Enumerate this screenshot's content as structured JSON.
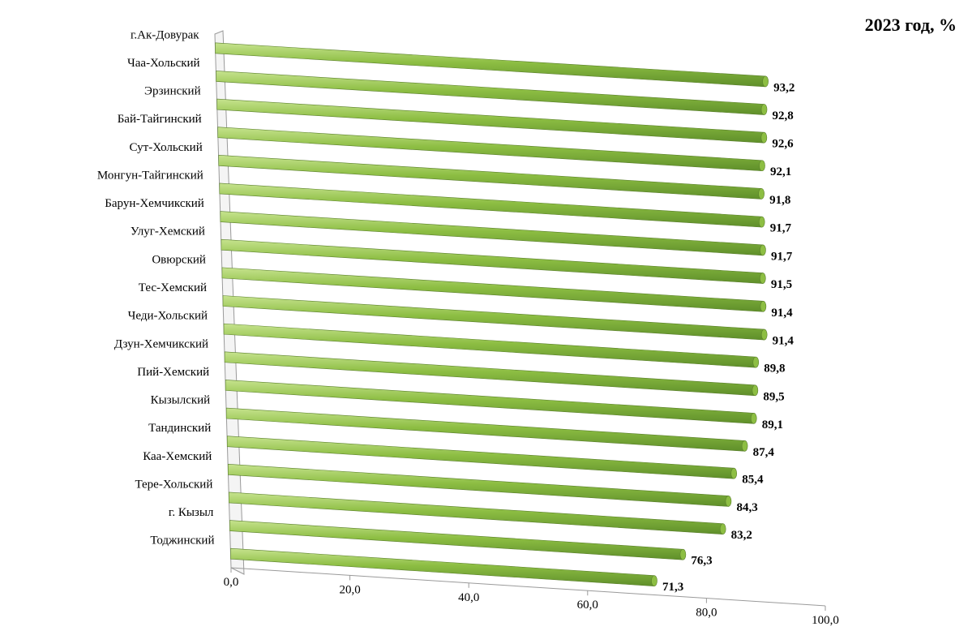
{
  "chart_data": {
    "type": "bar",
    "orientation": "horizontal",
    "title": "2023 год, %",
    "categories": [
      "г.Ак-Довурак",
      "Чаа-Хольский",
      "Эрзинский",
      "Бай-Тайгинский",
      "Сут-Хольский",
      "Монгун-Тайгинский",
      "Барун-Хемчикский",
      "Улуг-Хемский",
      "Овюрский",
      "Тес-Хемский",
      "Чеди-Хольский",
      "Дзун-Хемчикский",
      "Пий-Хемский",
      "Кызылский",
      "Тандинский",
      "Каа-Хемский",
      "Тере-Хольский",
      "г. Кызыл",
      "Тоджинский"
    ],
    "values": [
      93.2,
      92.8,
      92.6,
      92.1,
      91.8,
      91.7,
      91.7,
      91.5,
      91.4,
      91.4,
      89.8,
      89.5,
      89.1,
      87.4,
      85.4,
      84.3,
      83.2,
      76.3,
      71.3
    ],
    "value_labels": [
      "93,2",
      "92,8",
      "92,6",
      "92,1",
      "91,8",
      "91,7",
      "91,7",
      "91,5",
      "91,4",
      "91,4",
      "89,8",
      "89,5",
      "89,1",
      "87,4",
      "85,4",
      "84,3",
      "83,2",
      "76,3",
      "71,3"
    ],
    "xticks": [
      0,
      20,
      40,
      60,
      80,
      100
    ],
    "xtick_labels": [
      "0,0",
      "20,0",
      "40,0",
      "60,0",
      "80,0",
      "100,0"
    ],
    "xlim": [
      0,
      100
    ],
    "bar_color": "#8dbe43",
    "bar_color_dark": "#5f8f2a",
    "bar_color_light": "#c6e38e",
    "grid": false,
    "legend": "none"
  }
}
